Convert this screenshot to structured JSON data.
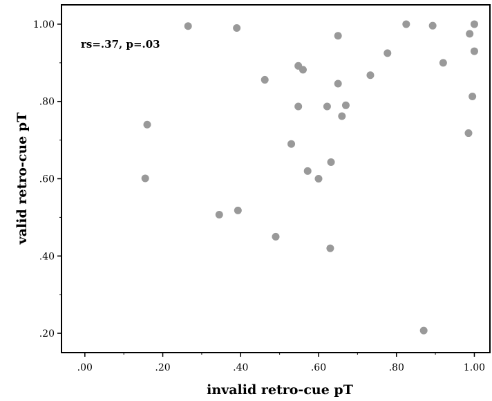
{
  "chart_data": {
    "type": "scatter",
    "title": "",
    "xlabel": "invalid retro-cue pT",
    "ylabel": "valid retro-cue pT",
    "annotation": "rs=.37, p=.03",
    "xlim": [
      -0.06,
      1.04
    ],
    "ylim": [
      0.15,
      1.05
    ],
    "x_ticks": [
      0.0,
      0.2,
      0.4,
      0.6,
      0.8,
      1.0
    ],
    "x_tick_labels": [
      ".00",
      ".20",
      ".40",
      ".60",
      ".80",
      "1.00"
    ],
    "y_ticks": [
      0.2,
      0.4,
      0.6,
      0.8,
      1.0
    ],
    "y_tick_labels": [
      ".20",
      ".40",
      ".60",
      ".80",
      "1.00"
    ],
    "grid": false,
    "marker_color": "#999999",
    "points": [
      {
        "x": 0.265,
        "y": 0.995
      },
      {
        "x": 0.39,
        "y": 0.99
      },
      {
        "x": 0.65,
        "y": 0.97
      },
      {
        "x": 0.825,
        "y": 1.0
      },
      {
        "x": 0.893,
        "y": 0.996
      },
      {
        "x": 0.988,
        "y": 0.975
      },
      {
        "x": 1.0,
        "y": 1.0
      },
      {
        "x": 1.0,
        "y": 0.93
      },
      {
        "x": 0.92,
        "y": 0.9
      },
      {
        "x": 0.777,
        "y": 0.925
      },
      {
        "x": 0.733,
        "y": 0.868
      },
      {
        "x": 0.548,
        "y": 0.892
      },
      {
        "x": 0.56,
        "y": 0.882
      },
      {
        "x": 0.462,
        "y": 0.856
      },
      {
        "x": 0.65,
        "y": 0.846
      },
      {
        "x": 0.548,
        "y": 0.787
      },
      {
        "x": 0.622,
        "y": 0.787
      },
      {
        "x": 0.67,
        "y": 0.79
      },
      {
        "x": 0.66,
        "y": 0.762
      },
      {
        "x": 0.995,
        "y": 0.813
      },
      {
        "x": 0.985,
        "y": 0.718
      },
      {
        "x": 0.16,
        "y": 0.74
      },
      {
        "x": 0.53,
        "y": 0.69
      },
      {
        "x": 0.572,
        "y": 0.62
      },
      {
        "x": 0.632,
        "y": 0.643
      },
      {
        "x": 0.6,
        "y": 0.6
      },
      {
        "x": 0.155,
        "y": 0.601
      },
      {
        "x": 0.345,
        "y": 0.507
      },
      {
        "x": 0.393,
        "y": 0.518
      },
      {
        "x": 0.49,
        "y": 0.45
      },
      {
        "x": 0.63,
        "y": 0.42
      },
      {
        "x": 0.87,
        "y": 0.207
      }
    ]
  }
}
